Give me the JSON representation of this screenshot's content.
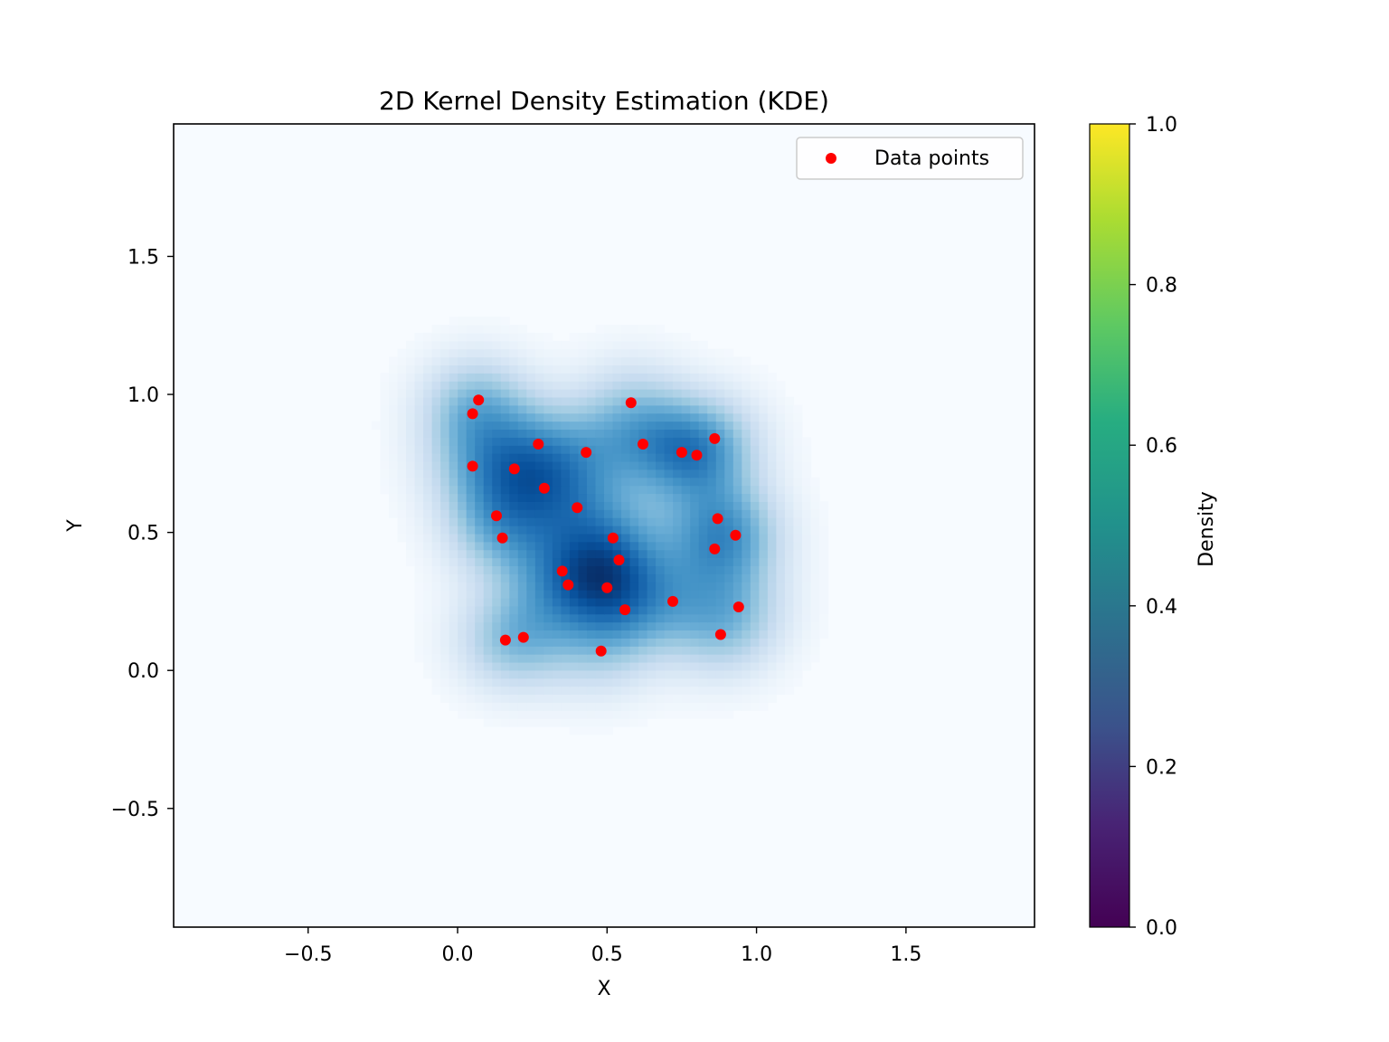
{
  "chart_data": {
    "type": "heatmap",
    "title": "2D Kernel Density Estimation (KDE)",
    "xlabel": "X",
    "ylabel": "Y",
    "xlim": [
      -0.95,
      1.93
    ],
    "ylim": [
      -0.93,
      1.98
    ],
    "xticks": [
      {
        "value": -0.5,
        "label": "−0.5"
      },
      {
        "value": 0.0,
        "label": "0.0"
      },
      {
        "value": 0.5,
        "label": "0.5"
      },
      {
        "value": 1.0,
        "label": "1.0"
      },
      {
        "value": 1.5,
        "label": "1.5"
      }
    ],
    "yticks": [
      {
        "value": -0.5,
        "label": "−0.5"
      },
      {
        "value": 0.0,
        "label": "0.0"
      },
      {
        "value": 0.5,
        "label": "0.5"
      },
      {
        "value": 1.0,
        "label": "1.0"
      },
      {
        "value": 1.5,
        "label": "1.5"
      }
    ],
    "density_colormap": "Blues",
    "colorbar": {
      "label": "Density",
      "colormap": "viridis",
      "range": [
        0.0,
        1.0
      ],
      "ticks": [
        {
          "value": 0.0,
          "label": "0.0"
        },
        {
          "value": 0.2,
          "label": "0.2"
        },
        {
          "value": 0.4,
          "label": "0.4"
        },
        {
          "value": 0.6,
          "label": "0.6"
        },
        {
          "value": 0.8,
          "label": "0.8"
        },
        {
          "value": 1.0,
          "label": "1.0"
        }
      ]
    },
    "legend": {
      "position": "upper-right",
      "entries": [
        {
          "label": "Data points",
          "color": "#ff0000"
        }
      ]
    },
    "series": [
      {
        "name": "Data points",
        "color": "#ff0000",
        "points": [
          {
            "x": 0.07,
            "y": 0.98
          },
          {
            "x": 0.05,
            "y": 0.93
          },
          {
            "x": 0.58,
            "y": 0.97
          },
          {
            "x": 0.27,
            "y": 0.82
          },
          {
            "x": 0.43,
            "y": 0.79
          },
          {
            "x": 0.62,
            "y": 0.82
          },
          {
            "x": 0.75,
            "y": 0.79
          },
          {
            "x": 0.8,
            "y": 0.78
          },
          {
            "x": 0.86,
            "y": 0.84
          },
          {
            "x": 0.05,
            "y": 0.74
          },
          {
            "x": 0.19,
            "y": 0.73
          },
          {
            "x": 0.29,
            "y": 0.66
          },
          {
            "x": 0.4,
            "y": 0.59
          },
          {
            "x": 0.13,
            "y": 0.56
          },
          {
            "x": 0.87,
            "y": 0.55
          },
          {
            "x": 0.15,
            "y": 0.48
          },
          {
            "x": 0.52,
            "y": 0.48
          },
          {
            "x": 0.93,
            "y": 0.49
          },
          {
            "x": 0.86,
            "y": 0.44
          },
          {
            "x": 0.54,
            "y": 0.4
          },
          {
            "x": 0.35,
            "y": 0.36
          },
          {
            "x": 0.37,
            "y": 0.31
          },
          {
            "x": 0.5,
            "y": 0.3
          },
          {
            "x": 0.72,
            "y": 0.25
          },
          {
            "x": 0.94,
            "y": 0.23
          },
          {
            "x": 0.56,
            "y": 0.22
          },
          {
            "x": 0.16,
            "y": 0.11
          },
          {
            "x": 0.22,
            "y": 0.12
          },
          {
            "x": 0.48,
            "y": 0.07
          },
          {
            "x": 0.88,
            "y": 0.13
          }
        ]
      }
    ]
  }
}
